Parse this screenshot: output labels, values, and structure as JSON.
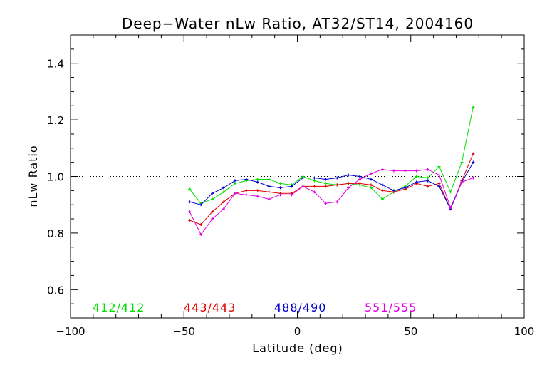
{
  "chart_data": {
    "type": "line",
    "title": "Deep−Water nLw Ratio, AT32/ST14, 2004160",
    "xlabel": "Latitude (deg)",
    "ylabel": "nLw Ratio",
    "xlim": [
      -100,
      100
    ],
    "ylim": [
      0.5,
      1.5
    ],
    "xticks": [
      -100,
      -50,
      0,
      50,
      100
    ],
    "xtick_labels": [
      "−100",
      "−50",
      "0",
      "50",
      "100"
    ],
    "yticks": [
      0.6,
      0.8,
      1.0,
      1.2,
      1.4
    ],
    "ytick_labels": [
      "0.6",
      "0.8",
      "1.0",
      "1.2",
      "1.4"
    ],
    "reference_line": 1.0,
    "grid": false,
    "legend_position": "bottom-inside",
    "x": [
      -47.5,
      -42.5,
      -37.5,
      -32.5,
      -27.5,
      -22.5,
      -17.5,
      -12.5,
      -7.5,
      -2.5,
      2.5,
      7.5,
      12.5,
      17.5,
      22.5,
      27.5,
      32.5,
      37.5,
      42.5,
      47.5,
      52.5,
      57.5,
      62.5,
      67.5,
      72.5,
      77.5
    ],
    "series": [
      {
        "name": "412/412",
        "color": "#00e000",
        "values": [
          0.955,
          0.905,
          0.92,
          0.945,
          0.975,
          0.985,
          0.99,
          0.99,
          0.975,
          0.97,
          1.0,
          0.985,
          0.975,
          0.97,
          0.975,
          0.97,
          0.96,
          0.92,
          0.945,
          0.965,
          1.0,
          0.995,
          1.035,
          0.945,
          1.05,
          1.245
        ]
      },
      {
        "name": "443/443",
        "color": "#e00000",
        "values": [
          0.845,
          0.83,
          0.875,
          0.91,
          0.94,
          0.95,
          0.95,
          0.945,
          0.94,
          0.94,
          0.965,
          0.965,
          0.965,
          0.97,
          0.975,
          0.975,
          0.97,
          0.95,
          0.945,
          0.955,
          0.975,
          0.965,
          0.975,
          0.885,
          0.985,
          1.08
        ]
      },
      {
        "name": "488/490",
        "color": "#0000d0",
        "values": [
          0.91,
          0.9,
          0.94,
          0.96,
          0.985,
          0.99,
          0.98,
          0.965,
          0.96,
          0.965,
          0.995,
          0.995,
          0.99,
          0.995,
          1.005,
          1.0,
          0.99,
          0.97,
          0.95,
          0.96,
          0.98,
          0.985,
          0.965,
          0.885,
          0.98,
          1.05
        ]
      },
      {
        "name": "551/555",
        "color": "#e000e0",
        "values": [
          0.875,
          0.795,
          0.85,
          0.885,
          0.94,
          0.935,
          0.93,
          0.92,
          0.935,
          0.935,
          0.965,
          0.945,
          0.905,
          0.91,
          0.96,
          0.99,
          1.01,
          1.025,
          1.02,
          1.02,
          1.02,
          1.025,
          1.005,
          0.89,
          0.98,
          0.995
        ]
      }
    ]
  }
}
